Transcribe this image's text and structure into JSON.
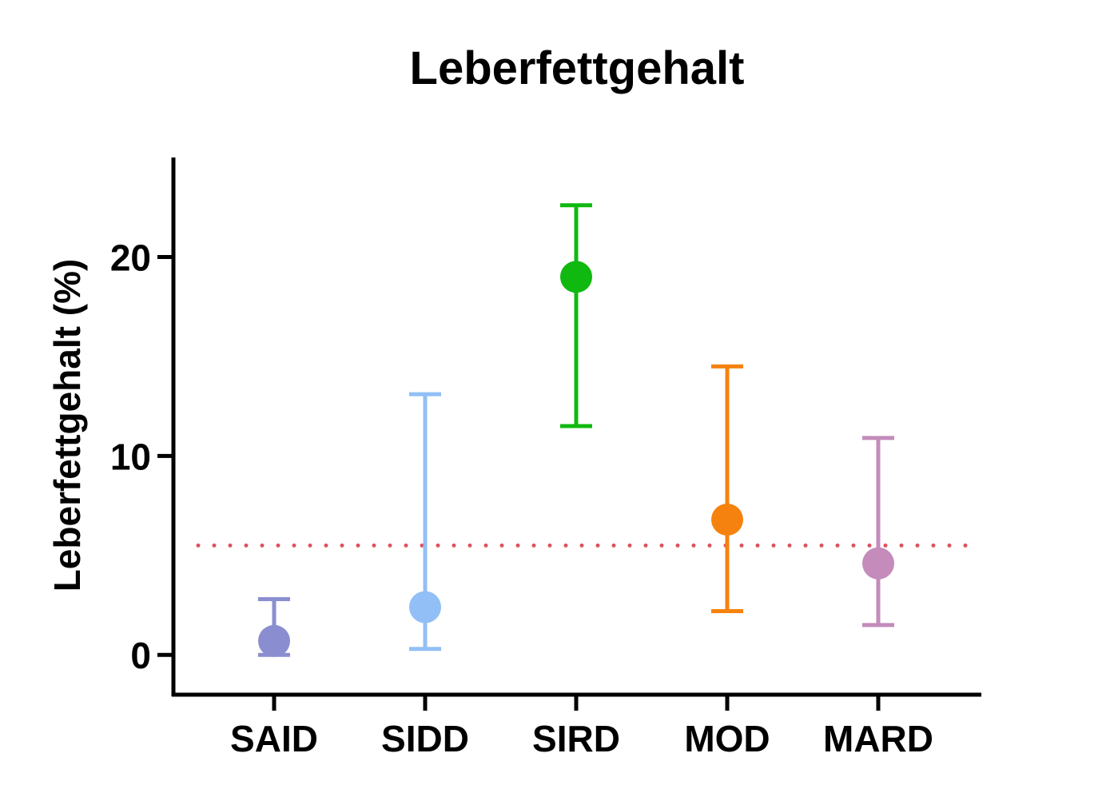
{
  "chart_data": {
    "type": "scatter",
    "title": "Leberfettgehalt",
    "xlabel": "",
    "ylabel": "Leberfettgehalt (%)",
    "ylim": [
      -2,
      25
    ],
    "yticks": [
      0,
      10,
      20
    ],
    "ytick_labels": [
      "0",
      "10",
      "20"
    ],
    "grid": false,
    "categories": [
      "SAID",
      "SIDD",
      "SIRD",
      "MOD",
      "MARD"
    ],
    "points": [
      {
        "category": "SAID",
        "value": 0.7,
        "upper": 2.8,
        "lower": 0.0,
        "color": "#8a8ed0"
      },
      {
        "category": "SIDD",
        "value": 2.4,
        "upper": 13.1,
        "lower": 0.3,
        "color": "#92bff5"
      },
      {
        "category": "SIRD",
        "value": 19.0,
        "upper": 22.6,
        "lower": 11.5,
        "color": "#10b910"
      },
      {
        "category": "MOD",
        "value": 6.8,
        "upper": 14.5,
        "lower": 2.2,
        "color": "#f5820f"
      },
      {
        "category": "MARD",
        "value": 4.6,
        "upper": 10.9,
        "lower": 1.5,
        "color": "#c48bbb"
      }
    ],
    "reference_line": {
      "value": 5.5,
      "style": "dotted",
      "color": "#e0505e"
    }
  }
}
